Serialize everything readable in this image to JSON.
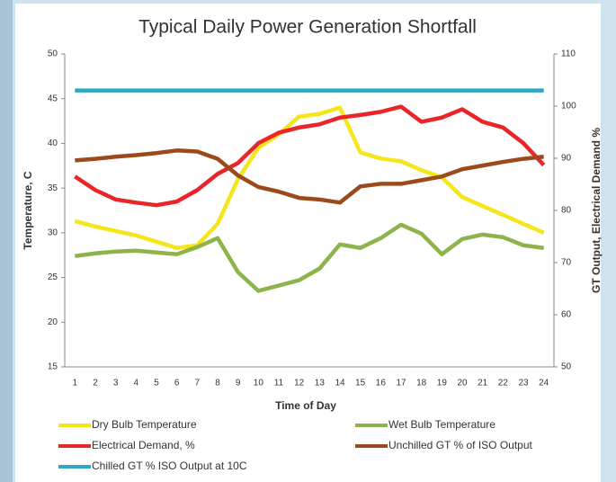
{
  "chart_data": {
    "type": "line",
    "title": "Typical Daily Power Generation Shortfall",
    "x_label": "Time of Day",
    "y_label": "Temperature, C",
    "y2_label": "GT  Output, Electrical Demand %",
    "categories": [
      "1",
      "2",
      "3",
      "4",
      "5",
      "6",
      "7",
      "8",
      "9",
      "10",
      "11",
      "12",
      "13",
      "14",
      "15",
      "16",
      "17",
      "18",
      "19",
      "20",
      "21",
      "22",
      "23",
      "24"
    ],
    "ylim": [
      15,
      50
    ],
    "yticks": [
      15,
      20,
      25,
      30,
      35,
      40,
      45,
      50
    ],
    "y2lim": [
      50,
      110
    ],
    "y2ticks": [
      50,
      60,
      70,
      80,
      90,
      100,
      110
    ],
    "series": [
      {
        "name": "Dry Bulb Temperature",
        "color": "#f5e61c",
        "values": [
          31.3,
          30.7,
          30.2,
          29.7,
          29,
          28.3,
          28.6,
          31,
          36,
          39.5,
          41,
          43,
          43.3,
          44,
          39,
          38.3,
          38,
          37,
          36.2,
          34,
          33,
          32,
          31,
          30
        ]
      },
      {
        "name": "Wet Bulb Temperature",
        "color": "#8db34a",
        "values": [
          27.4,
          27.7,
          27.9,
          28,
          27.8,
          27.6,
          28.4,
          29.4,
          25.6,
          23.5,
          24.1,
          24.7,
          26,
          28.7,
          28.3,
          29.4,
          30.9,
          29.9,
          27.6,
          29.3,
          29.8,
          29.5,
          28.6,
          28.3
        ]
      },
      {
        "name": "Electrical Demand, %",
        "color": "#e8262a",
        "axis": "y2",
        "values": [
          86.5,
          83.9,
          82.1,
          81.5,
          81,
          81.7,
          83.9,
          87,
          89.1,
          92.9,
          94.9,
          95.9,
          96.5,
          97.8,
          98.3,
          98.9,
          99.9,
          97,
          97.8,
          99.4,
          97,
          95.9,
          92.9,
          88.7
        ]
      },
      {
        "name": "Unchilled GT % of ISO Output",
        "color": "#9c4a1c",
        "axis": "y2",
        "values": [
          89.6,
          89.9,
          90.3,
          90.6,
          91,
          91.5,
          91.3,
          89.9,
          86.7,
          84.5,
          83.6,
          82.4,
          82.1,
          81.5,
          84.6,
          85.1,
          85.1,
          85.8,
          86.5,
          87.9,
          88.6,
          89.3,
          89.9,
          90.3
        ]
      },
      {
        "name": "Chilled GT % ISO Output at 10C",
        "color": "#2fa8c4",
        "axis": "y2",
        "values": [
          103,
          103,
          103,
          103,
          103,
          103,
          103,
          103,
          103,
          103,
          103,
          103,
          103,
          103,
          103,
          103,
          103,
          103,
          103,
          103,
          103,
          103,
          103,
          103
        ]
      }
    ]
  }
}
